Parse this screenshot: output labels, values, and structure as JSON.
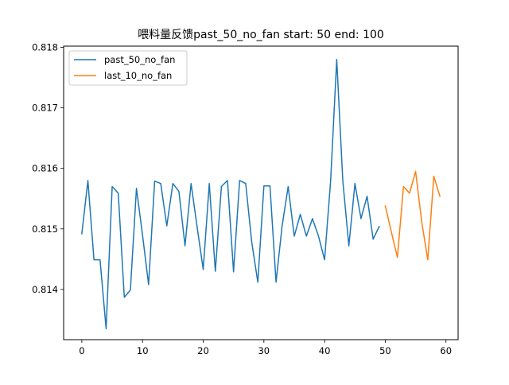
{
  "chart_data": {
    "type": "line",
    "title": "喂料量反馈past_50_no_fan  start: 50 end: 100",
    "xlabel": "",
    "ylabel": "",
    "xlim": [
      -3,
      62
    ],
    "ylim": [
      0.81317,
      0.81802
    ],
    "xticks": [
      0,
      10,
      20,
      30,
      40,
      50,
      60
    ],
    "xtick_labels": [
      "0",
      "10",
      "20",
      "30",
      "40",
      "50",
      "60"
    ],
    "yticks": [
      0.814,
      0.815,
      0.816,
      0.817,
      0.818
    ],
    "ytick_labels": [
      "0.814",
      "0.815",
      "0.816",
      "0.817",
      "0.818"
    ],
    "grid": false,
    "legend": {
      "position": "top-left"
    },
    "series": [
      {
        "name": "past_50_no_fan",
        "color": "#1f77b4",
        "x": [
          0,
          1,
          2,
          3,
          4,
          5,
          6,
          7,
          8,
          9,
          10,
          11,
          12,
          13,
          14,
          15,
          16,
          17,
          18,
          19,
          20,
          21,
          22,
          23,
          24,
          25,
          26,
          27,
          28,
          29,
          30,
          31,
          32,
          33,
          34,
          35,
          36,
          37,
          38,
          39,
          40,
          41,
          42,
          43,
          44,
          45,
          46,
          47,
          48,
          49
        ],
        "y": [
          0.81492,
          0.8158,
          0.81449,
          0.81449,
          0.81335,
          0.8157,
          0.81559,
          0.81387,
          0.81399,
          0.81567,
          0.8149,
          0.81408,
          0.81579,
          0.81575,
          0.81505,
          0.81575,
          0.81562,
          0.81472,
          0.81575,
          0.81503,
          0.81433,
          0.81575,
          0.8143,
          0.8157,
          0.8158,
          0.81429,
          0.8158,
          0.81575,
          0.81478,
          0.81412,
          0.81571,
          0.81571,
          0.81412,
          0.81505,
          0.8157,
          0.81488,
          0.81524,
          0.81488,
          0.81517,
          0.81488,
          0.81449,
          0.8158,
          0.8178,
          0.8158,
          0.81472,
          0.81575,
          0.81517,
          0.81554,
          0.81483,
          0.81504
        ]
      },
      {
        "name": "last_10_no_fan",
        "color": "#ff7f0e",
        "x": [
          50,
          51,
          52,
          53,
          54,
          55,
          56,
          57,
          58,
          59
        ],
        "y": [
          0.81538,
          0.81495,
          0.81453,
          0.8157,
          0.81559,
          0.81595,
          0.81512,
          0.81449,
          0.81587,
          0.81554
        ]
      }
    ]
  }
}
